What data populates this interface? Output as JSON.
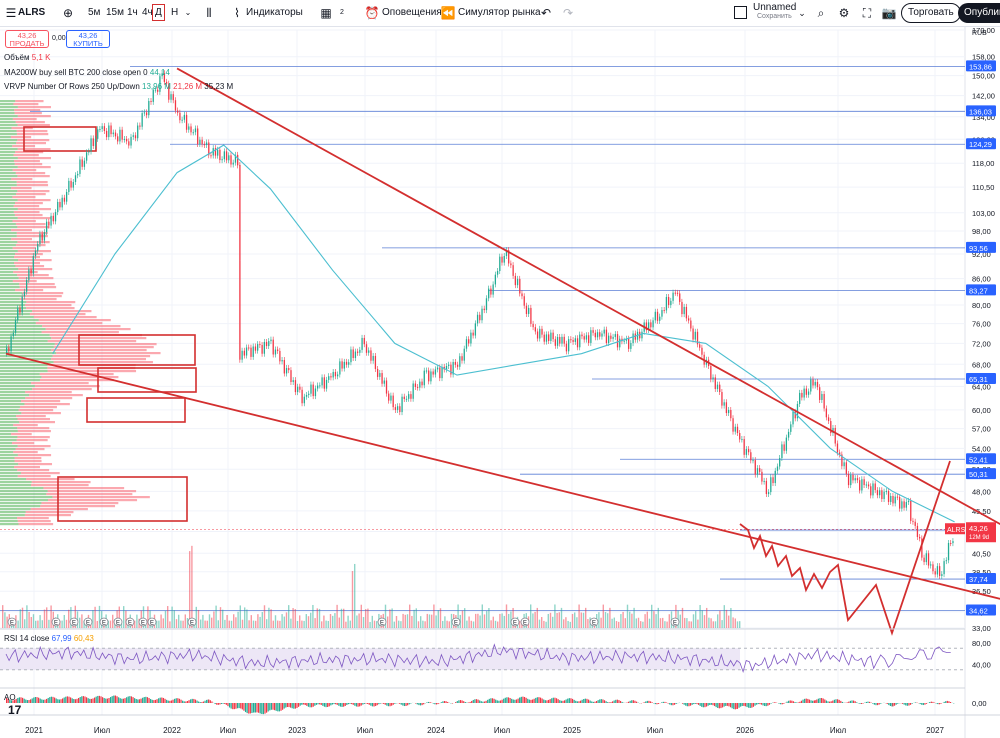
{
  "toolbar": {
    "symbol": "ALRS",
    "add_symbol_icon": "plus-circle-icon",
    "timeframes": [
      "5м",
      "15м",
      "1ч",
      "4ч",
      "Д",
      "Н"
    ],
    "active_timeframe": "Д",
    "indicators_label": "Индикаторы",
    "layouts_count": "2",
    "alerts_label": "Оповещения",
    "replay_label": "Симулятор рынка",
    "layout_name": "Unnamed",
    "layout_status": "Сохранить",
    "trade_label": "Торговать",
    "publish_label": "Опубликовать"
  },
  "quotes": {
    "sell_price": "43,26",
    "sell_label": "ПРОДАТЬ",
    "spread": "0,00",
    "buy_price": "43,26",
    "buy_label": "КУПИТЬ"
  },
  "legend": {
    "volume_label": "Объём",
    "volume_value": "5,1 K",
    "ma_label": "MA200W buy sell BTC 200 close open 0",
    "ma_value": "44,14",
    "vrvp_label": "VRVP Number Of Rows 250 Up/Down",
    "vrvp_up": "13,96 M",
    "vrvp_down": "21,26 M",
    "vrvp_total": "35,23 M",
    "rsi_label": "RSI 14 close",
    "rsi_value1": "67,99",
    "rsi_value2": "60,43",
    "ao_label": "AO"
  },
  "currency": "RUB",
  "colors": {
    "up": "#22ab94",
    "down": "#f23645",
    "trend": "#d32f2f",
    "ma": "#4cbfd0",
    "level": "#5b7fd6",
    "rsi": "#7e57c2",
    "rsi_band": "#ede7f6"
  },
  "chart_data": {
    "type": "line",
    "title": "ALRS",
    "interval": "Д",
    "x_ticks": [
      "2021",
      "Июл",
      "2022",
      "Июл",
      "2023",
      "Июл",
      "2024",
      "Июл",
      "2025",
      "Июл",
      "2026",
      "Июл",
      "2027"
    ],
    "y_ticks": [
      "170,00",
      "158,00",
      "150,00",
      "142,00",
      "134,00",
      "126,00",
      "118,00",
      "110,50",
      "103,00",
      "98,00",
      "92,00",
      "86,00",
      "80,00",
      "76,00",
      "72,00",
      "68,00",
      "64,00",
      "60,00",
      "57,00",
      "54,00",
      "51,00",
      "48,00",
      "45,50",
      "43,00",
      "40,50",
      "38,50",
      "36,50",
      "34,50",
      "33,00"
    ],
    "ylim": [
      33,
      170
    ],
    "y_scale": "log",
    "series": [
      {
        "name": "ALRS",
        "x": [
          "2020-11",
          "2021-01",
          "2021-03",
          "2021-05",
          "2021-07",
          "2021-09",
          "2021-10",
          "2021-12",
          "2022-02",
          "2022-02",
          "2022-04",
          "2022-06",
          "2022-08",
          "2022-10",
          "2022-12",
          "2023-02",
          "2023-04",
          "2023-06",
          "2023-07",
          "2023-09",
          "2023-11",
          "2024-01",
          "2024-03",
          "2024-05",
          "2024-06",
          "2024-08",
          "2024-10",
          "2024-12",
          "2025-02",
          "2025-03",
          "2025-05",
          "2025-07",
          "2025-09",
          "2025-10",
          "2025-11",
          "2025-12"
        ],
        "values": [
          70,
          95,
          110,
          130,
          125,
          150,
          135,
          122,
          118,
          70,
          72,
          62,
          66,
          72,
          60,
          66,
          68,
          82,
          93,
          74,
          72,
          74,
          72,
          78,
          83,
          68,
          56,
          48,
          62,
          65,
          50,
          48,
          46,
          40,
          38,
          43.26
        ]
      },
      {
        "name": "MA200W",
        "x": [
          "2021-02",
          "2021-06",
          "2021-10",
          "2022-01",
          "2022-04",
          "2022-08",
          "2022-12",
          "2023-04",
          "2023-08",
          "2023-12",
          "2024-04",
          "2024-08",
          "2024-12",
          "2025-04",
          "2025-08",
          "2025-12"
        ],
        "values": [
          70,
          92,
          115,
          124,
          110,
          88,
          72,
          66,
          68,
          70,
          74,
          72,
          64,
          54,
          48,
          44.14
        ]
      }
    ],
    "price_levels": [
      "153,86",
      "136,03",
      "124,29",
      "93,56",
      "83,27",
      "65,31",
      "52,41",
      "50,31",
      "43,16",
      "37,74",
      "34,62"
    ],
    "current_price": "43,26",
    "current_price_symbol": "ALRS",
    "current_price_volume": "12M 9d",
    "trendlines": [
      {
        "from": {
          "x": "2021-10",
          "y": 153
        },
        "to": {
          "x": "2027-01",
          "y": 34.6
        }
      },
      {
        "from": {
          "x": "2020-11",
          "y": 70
        },
        "to": {
          "x": "2026-12",
          "y": 32.5
        }
      }
    ],
    "rsi": {
      "ylim": [
        0,
        100
      ],
      "y_ticks": [
        "80,00",
        "40,00"
      ],
      "x": [
        "2020-11",
        "2021-03",
        "2021-07",
        "2021-11",
        "2022-03",
        "2022-07",
        "2022-11",
        "2023-03",
        "2023-07",
        "2023-11",
        "2024-03",
        "2024-07",
        "2024-11",
        "2025-03",
        "2025-07",
        "2025-12"
      ],
      "values": [
        55,
        62,
        50,
        58,
        42,
        48,
        50,
        45,
        66,
        52,
        55,
        50,
        38,
        58,
        44,
        67.99
      ]
    },
    "ao": {
      "y_ticks": [
        "0,00"
      ],
      "x": [
        "2020-11",
        "2021-06",
        "2021-12",
        "2022-03",
        "2022-06",
        "2023-01",
        "2023-08",
        "2024-04",
        "2024-10",
        "2025-03",
        "2025-08",
        "2025-12"
      ],
      "values": [
        8,
        12,
        4,
        -22,
        -6,
        -3,
        10,
        2,
        -10,
        8,
        -4,
        2
      ]
    }
  }
}
